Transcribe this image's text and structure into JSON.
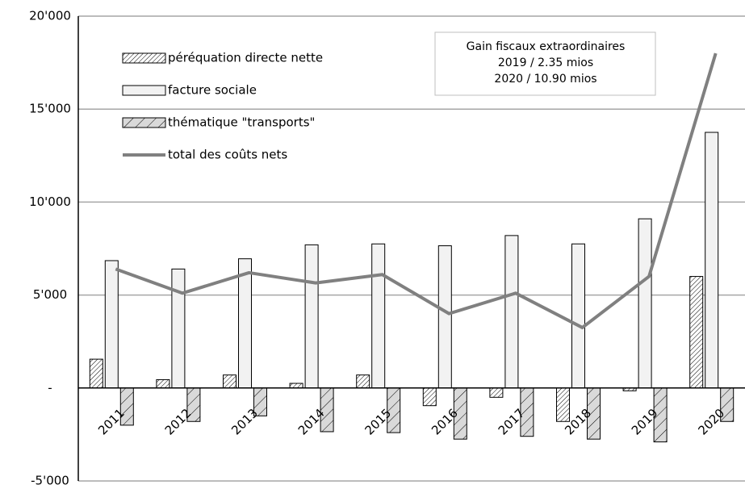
{
  "chart_data": {
    "type": "bar",
    "categories": [
      "2011",
      "2012",
      "2013",
      "2014",
      "2015",
      "2016",
      "2017",
      "2018",
      "2019",
      "2020"
    ],
    "series": [
      {
        "name": "péréquation directe nette",
        "type": "bar",
        "color": "hatch-fine",
        "values": [
          1550,
          450,
          700,
          250,
          700,
          -950,
          -500,
          -1800,
          -150,
          6000
        ]
      },
      {
        "name": "facture sociale",
        "type": "bar",
        "color": "#f2f2f2",
        "values": [
          6850,
          6400,
          6950,
          7700,
          7750,
          7650,
          8200,
          7750,
          9100,
          13750
        ]
      },
      {
        "name": "thématique \"transports\"",
        "type": "bar",
        "color": "hatch-wide",
        "values": [
          -2000,
          -1800,
          -1500,
          -2350,
          -2400,
          -2750,
          -2600,
          -2750,
          -2900,
          -1800
        ]
      },
      {
        "name": "total des coûts nets",
        "type": "line",
        "color": "#808080",
        "values": [
          6400,
          5100,
          6200,
          5650,
          6100,
          4000,
          5100,
          3250,
          6000,
          18000
        ]
      }
    ],
    "ylim": [
      -5000,
      20000
    ],
    "yticks": [
      {
        "value": -5000,
        "label": "-5'000"
      },
      {
        "value": 0,
        "label": "-"
      },
      {
        "value": 5000,
        "label": "5'000"
      },
      {
        "value": 10000,
        "label": "10'000"
      },
      {
        "value": 15000,
        "label": "15'000"
      },
      {
        "value": 20000,
        "label": "20'000"
      }
    ],
    "grid": true,
    "annotation": [
      "Gain fiscaux extraordinaires",
      "2019  /  2.35 mios",
      "2020  /  10.90 mios"
    ]
  }
}
